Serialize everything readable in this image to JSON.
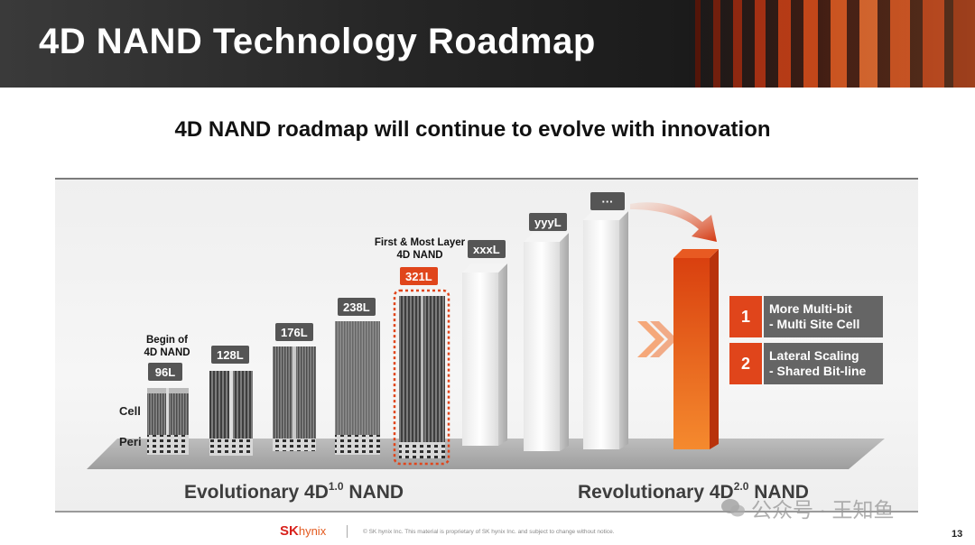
{
  "header": {
    "title": "4D NAND Technology Roadmap"
  },
  "subtitle": "4D NAND roadmap will continue to evolve with innovation",
  "roadmap": {
    "begin_note": "Begin of\n4D NAND",
    "first_note": "First & Most Layer\n4D NAND",
    "side_labels": {
      "cell": "Cell",
      "peri": "Peri"
    },
    "generations": [
      {
        "label": "96L"
      },
      {
        "label": "128L"
      },
      {
        "label": "176L"
      },
      {
        "label": "238L"
      },
      {
        "label": "321L",
        "highlight": true
      },
      {
        "label": "xxxL"
      },
      {
        "label": "yyyL"
      },
      {
        "label": "···"
      }
    ],
    "evolutionary_label": {
      "text": "Evolutionary 4D",
      "sup": "1.0",
      "tail": " NAND"
    },
    "revolutionary_label": {
      "text": "Revolutionary 4D",
      "sup": "2.0",
      "tail": " NAND"
    },
    "features": [
      {
        "num": "1",
        "line1": "More Multi-bit",
        "line2": "- Multi Site Cell"
      },
      {
        "num": "2",
        "line1": "Lateral Scaling",
        "line2": "- Shared Bit-line"
      }
    ],
    "colors": {
      "accent": "#e0451b",
      "badge": "#555555",
      "feature_box": "#656565"
    }
  },
  "footer": {
    "logo_sk": "SK",
    "logo_hynix": "hynix",
    "copyright": "© SK hynix Inc. This material is proprietary of SK hynix Inc. and subject to change without notice.",
    "page": "13"
  },
  "watermark": "公众号 · 王知鱼"
}
